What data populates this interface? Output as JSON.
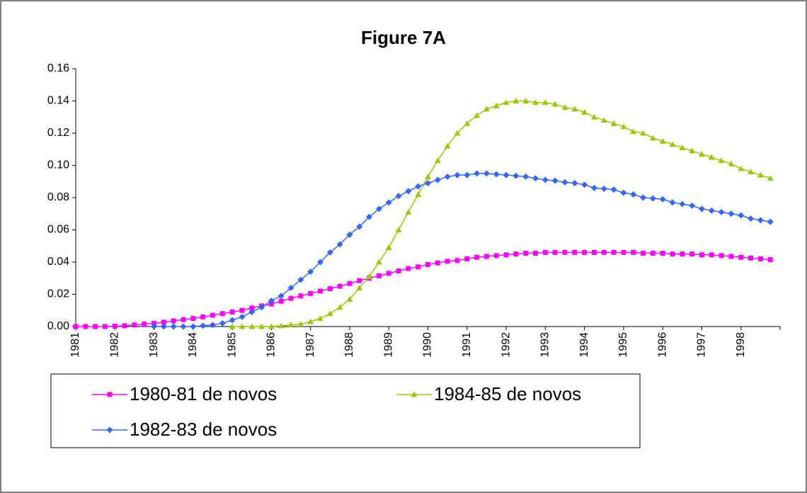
{
  "chart_data": {
    "type": "line",
    "title": "Figure 7A",
    "categories": [
      "1981",
      null,
      null,
      null,
      "1982",
      null,
      null,
      null,
      "1983",
      null,
      null,
      null,
      "1984",
      null,
      null,
      null,
      "1985",
      null,
      null,
      null,
      "1986",
      null,
      null,
      null,
      "1987",
      null,
      null,
      null,
      "1988",
      null,
      null,
      null,
      "1989",
      null,
      null,
      null,
      "1990",
      null,
      null,
      null,
      "1991",
      null,
      null,
      null,
      "1992",
      null,
      null,
      null,
      "1993",
      null,
      null,
      null,
      "1994",
      null,
      null,
      null,
      "1995",
      null,
      null,
      null,
      "1996",
      null,
      null,
      null,
      "1997",
      null,
      null,
      null,
      "1998",
      null,
      null,
      null
    ],
    "series": [
      {
        "name": "1980-81 de novos",
        "color": "#ff00ff",
        "marker": "square",
        "values": [
          0,
          0,
          0,
          0,
          0.0002,
          0.0005,
          0.001,
          0.0015,
          0.002,
          0.0027,
          0.0035,
          0.0043,
          0.005,
          0.006,
          0.007,
          0.008,
          0.009,
          0.01,
          0.0115,
          0.0128,
          0.014,
          0.0157,
          0.0175,
          0.019,
          0.0205,
          0.022,
          0.0235,
          0.025,
          0.0267,
          0.0285,
          0.03,
          0.0315,
          0.033,
          0.0345,
          0.036,
          0.037,
          0.0385,
          0.0395,
          0.0405,
          0.041,
          0.042,
          0.043,
          0.0435,
          0.044,
          0.0445,
          0.045,
          0.0455,
          0.0455,
          0.046,
          0.046,
          0.046,
          0.046,
          0.046,
          0.046,
          0.046,
          0.046,
          0.046,
          0.046,
          0.0455,
          0.0455,
          0.0455,
          0.045,
          0.045,
          0.045,
          0.0445,
          0.0445,
          0.044,
          0.0435,
          0.043,
          0.0425,
          0.042,
          0.0415
        ]
      },
      {
        "name": "1984-85 de novos",
        "color": "#99cc00",
        "marker": "triangle",
        "values": [
          null,
          null,
          null,
          null,
          null,
          null,
          null,
          null,
          null,
          null,
          null,
          null,
          null,
          null,
          null,
          null,
          0,
          0,
          0,
          0,
          0,
          0.0005,
          0.001,
          0.0015,
          0.003,
          0.005,
          0.008,
          0.012,
          0.017,
          0.024,
          0.031,
          0.04,
          0.049,
          0.06,
          0.071,
          0.082,
          0.093,
          0.103,
          0.112,
          0.12,
          0.126,
          0.131,
          0.135,
          0.137,
          0.139,
          0.14,
          0.14,
          0.139,
          0.139,
          0.138,
          0.136,
          0.135,
          0.133,
          0.13,
          0.128,
          0.126,
          0.124,
          0.121,
          0.12,
          0.117,
          0.115,
          0.113,
          0.111,
          0.109,
          0.107,
          0.105,
          0.103,
          0.101,
          0.098,
          0.096,
          0.094,
          0.092
        ]
      },
      {
        "name": "1982-83 de novos",
        "color": "#3366ff",
        "marker": "diamond",
        "values": [
          null,
          null,
          null,
          null,
          null,
          null,
          null,
          null,
          0,
          0,
          0,
          0,
          0,
          0.0005,
          0.001,
          0.002,
          0.004,
          0.006,
          0.009,
          0.012,
          0.016,
          0.019,
          0.024,
          0.029,
          0.034,
          0.04,
          0.046,
          0.051,
          0.057,
          0.062,
          0.068,
          0.073,
          0.077,
          0.081,
          0.084,
          0.087,
          0.089,
          0.091,
          0.093,
          0.094,
          0.094,
          0.095,
          0.095,
          0.0945,
          0.094,
          0.0935,
          0.093,
          0.092,
          0.091,
          0.0905,
          0.0895,
          0.089,
          0.088,
          0.086,
          0.0855,
          0.085,
          0.083,
          0.082,
          0.08,
          0.0795,
          0.079,
          0.077,
          0.076,
          0.075,
          0.073,
          0.072,
          0.071,
          0.07,
          0.069,
          0.067,
          0.066,
          0.065
        ]
      }
    ],
    "ylim": [
      0,
      0.16
    ],
    "yticks": [
      {
        "value": 0,
        "label": "0.00"
      },
      {
        "value": 0.02,
        "label": "0.02"
      },
      {
        "value": 0.04,
        "label": "0.04"
      },
      {
        "value": 0.06,
        "label": "0.06"
      },
      {
        "value": 0.08,
        "label": "0.08"
      },
      {
        "value": 0.1,
        "label": "0.10"
      },
      {
        "value": 0.12,
        "label": "0.12"
      },
      {
        "value": 0.14,
        "label": "0.14"
      },
      {
        "value": 0.16,
        "label": "0.16"
      }
    ],
    "legend": "bottom"
  }
}
